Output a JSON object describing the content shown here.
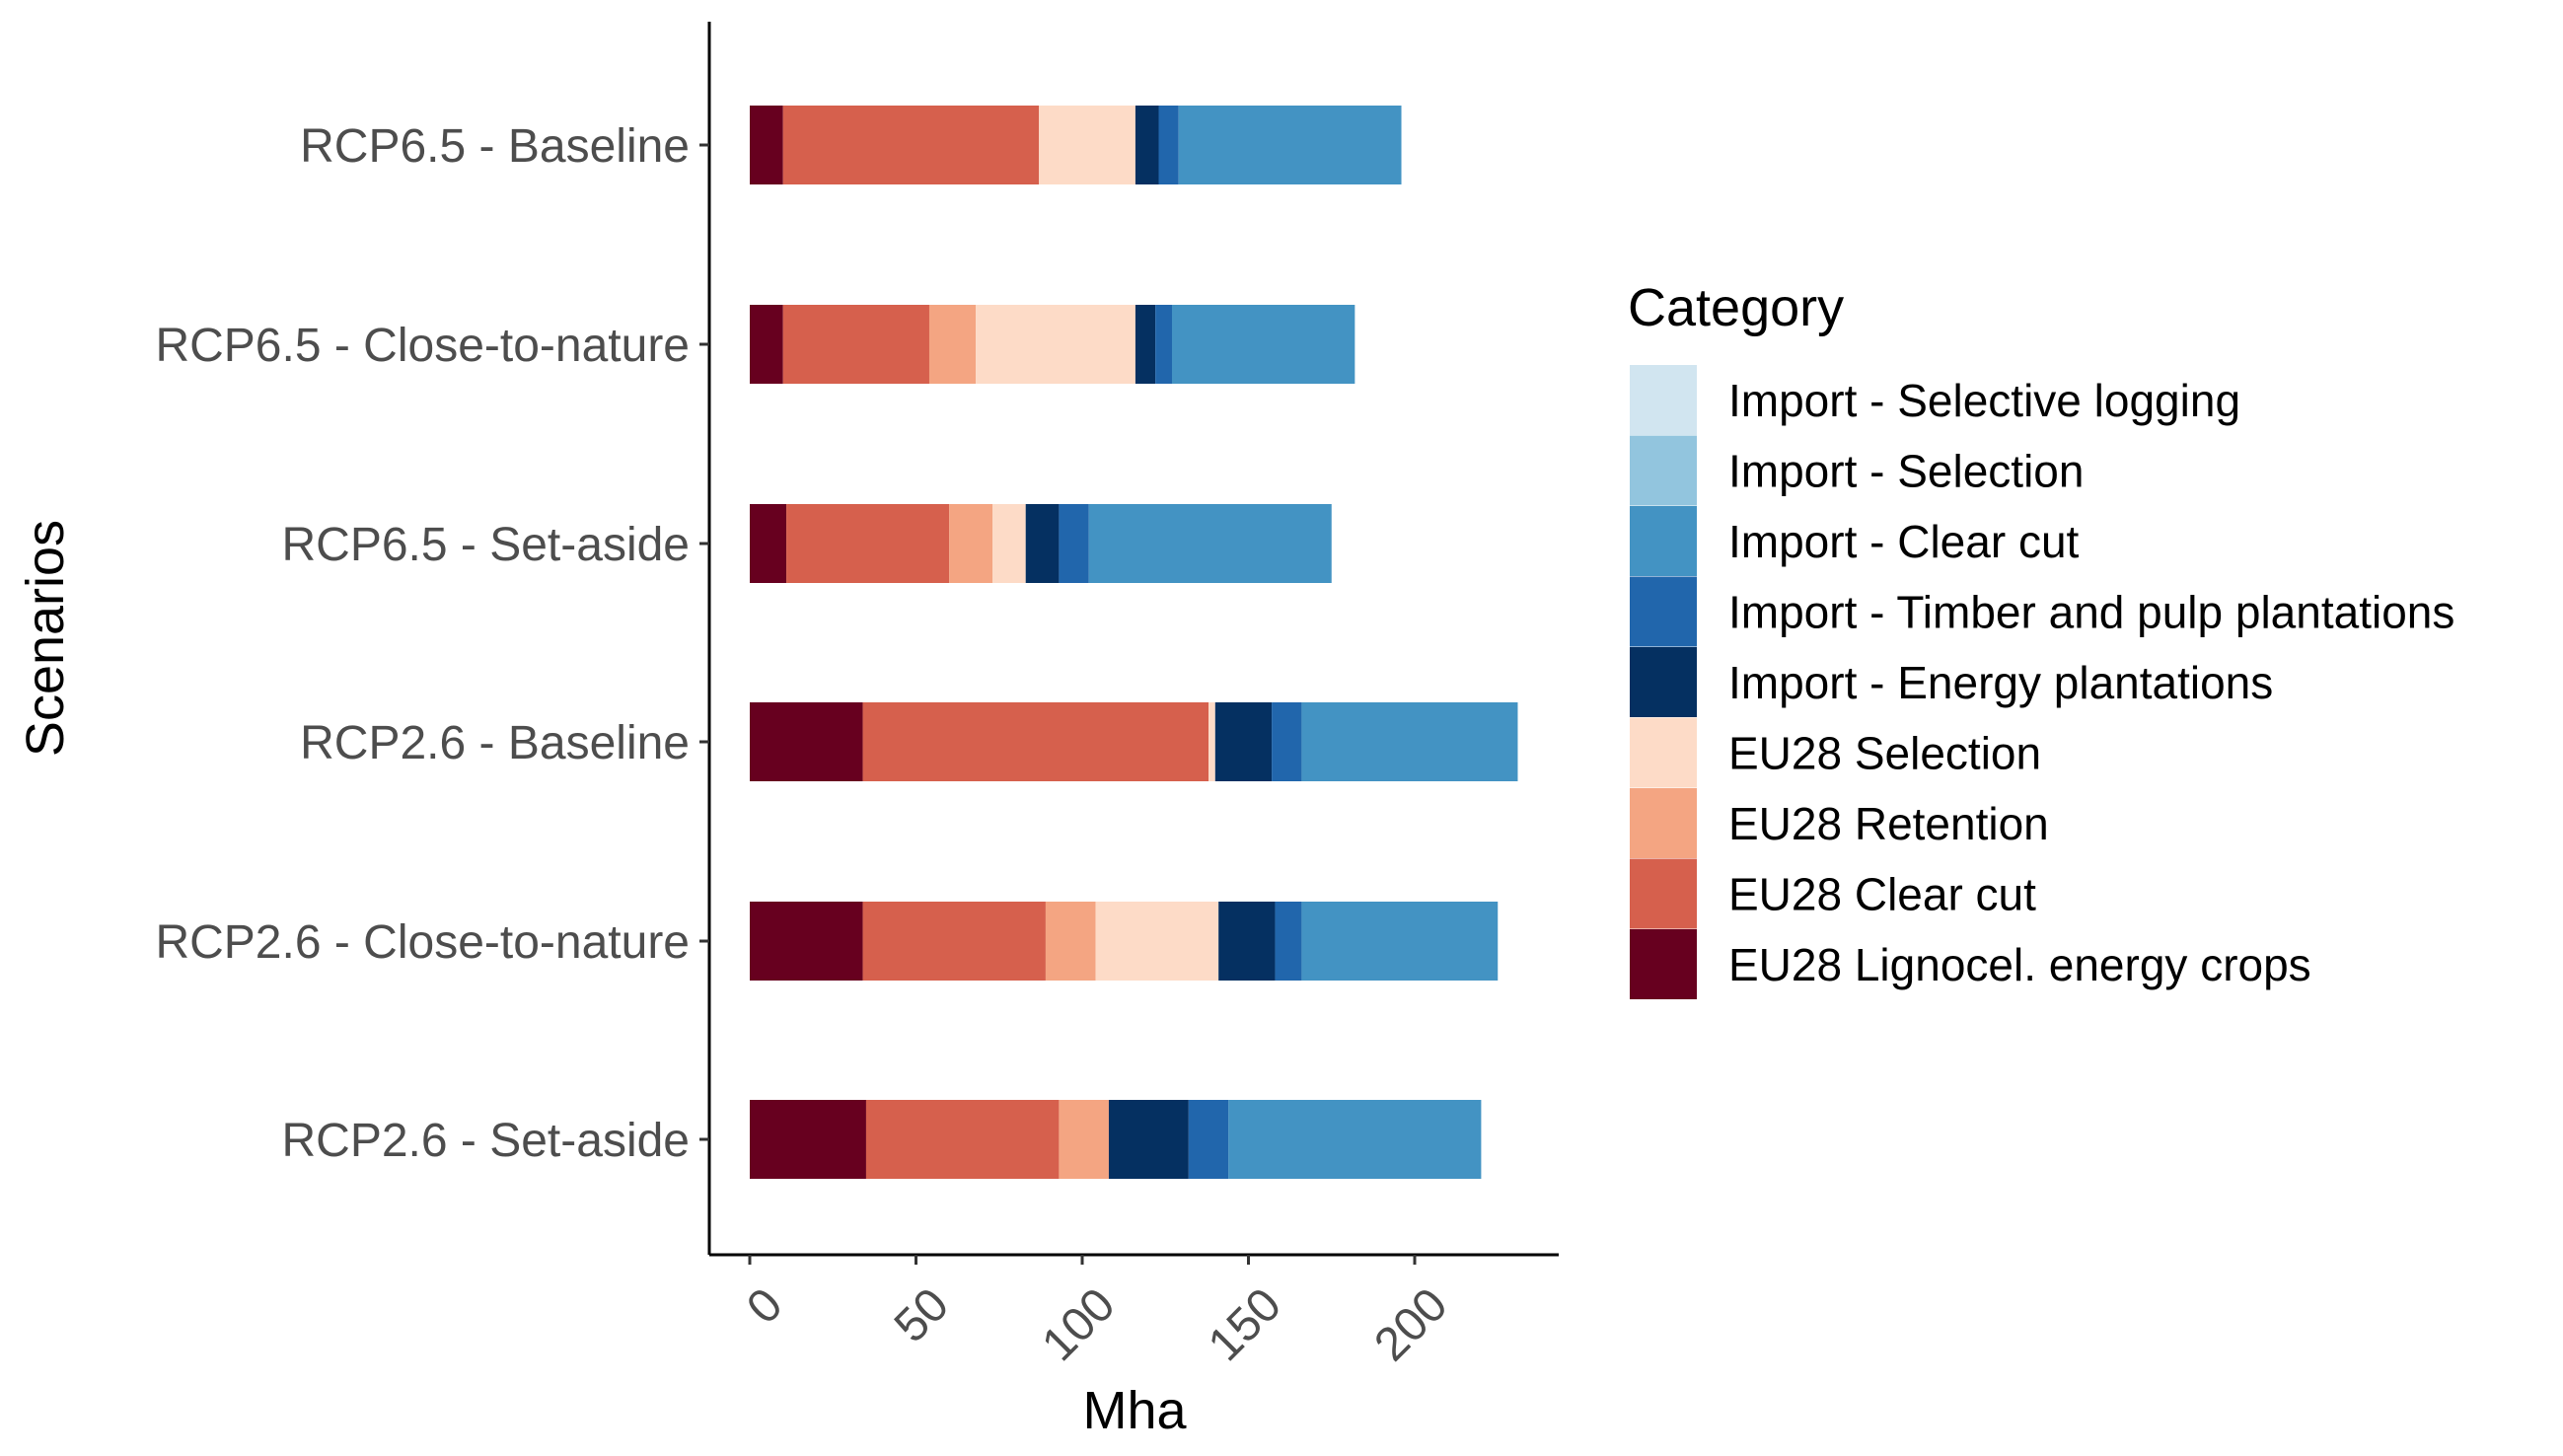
{
  "chart_data": {
    "type": "bar",
    "orientation": "horizontal",
    "stacked": true,
    "xlabel": "Mha",
    "ylabel": "Scenarios",
    "xlim": [
      -6,
      242
    ],
    "x_ticks": [
      "0",
      "50",
      "100",
      "150",
      "200"
    ],
    "x_tick_values": [
      0,
      50,
      100,
      150,
      200
    ],
    "grid": false,
    "legend_title": "Category",
    "legend_position": "right",
    "categories": [
      "RCP6.5 - Baseline",
      "RCP6.5 - Close-to-nature",
      "RCP6.5 - Set-aside",
      "RCP2.6 - Baseline",
      "RCP2.6 - Close-to-nature",
      "RCP2.6 - Set-aside"
    ],
    "series": [
      {
        "name": "EU28 Lignocel. energy crops",
        "color": "#67001F",
        "values": [
          10,
          10,
          11,
          34,
          34,
          35
        ]
      },
      {
        "name": "EU28 Clear cut",
        "color": "#D6604D",
        "values": [
          77,
          44,
          49,
          104,
          55,
          58
        ]
      },
      {
        "name": "EU28 Retention",
        "color": "#F4A582",
        "values": [
          0,
          14,
          13,
          0,
          15,
          15
        ]
      },
      {
        "name": "EU28 Selection",
        "color": "#FDDBC7",
        "values": [
          29,
          48,
          10,
          2,
          37,
          0
        ]
      },
      {
        "name": "Import - Energy plantations",
        "color": "#053061",
        "values": [
          7,
          6,
          10,
          17,
          17,
          24
        ]
      },
      {
        "name": "Import - Timber and pulp plantations",
        "color": "#2166AC",
        "values": [
          6,
          5,
          9,
          9,
          8,
          12
        ]
      },
      {
        "name": "Import - Clear cut",
        "color": "#4393C3",
        "values": [
          67,
          55,
          73,
          65,
          59,
          76
        ]
      },
      {
        "name": "Import - Selection",
        "color": "#92C5DE",
        "values": [
          0,
          0,
          0,
          0,
          0,
          0
        ]
      },
      {
        "name": "Import - Selective logging",
        "color": "#D1E5F0",
        "values": [
          0,
          0,
          0,
          0,
          0,
          0
        ]
      }
    ],
    "legend_order": [
      "Import - Selective logging",
      "Import - Selection",
      "Import - Clear cut",
      "Import - Timber and pulp plantations",
      "Import - Energy plantations",
      "EU28 Selection",
      "EU28 Retention",
      "EU28 Clear cut",
      "EU28 Lignocel. energy crops"
    ]
  }
}
